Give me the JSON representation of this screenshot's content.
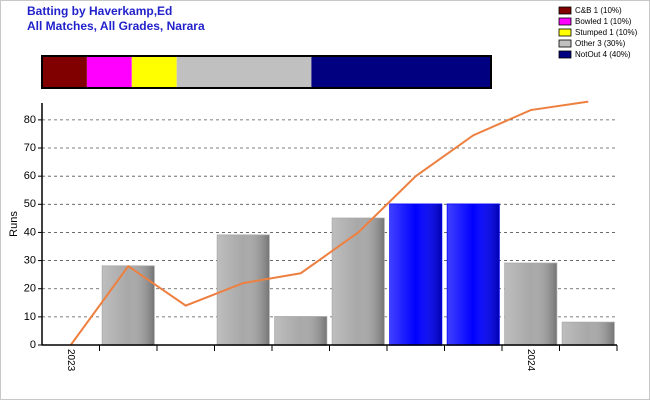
{
  "chart_data": {
    "type": "bar",
    "title": "Batting by Haverkamp,Ed",
    "subtitle": "All Matches, All Grades, Narara",
    "y_label": "Runs",
    "breakdown": [
      {
        "name": "C&B 1 (10%)",
        "color": "#800000",
        "value": 10
      },
      {
        "name": "Bowled 1 (10%)",
        "color": "#ff00ff",
        "value": 10
      },
      {
        "name": "Stumped 1 (10%)",
        "color": "#ffff00",
        "value": 10
      },
      {
        "name": "Other 3 (30%)",
        "color": "#c0c0c0",
        "value": 30
      },
      {
        "name": "NotOut 4 (40%)",
        "color": "#000080",
        "value": 40
      }
    ],
    "categories": [
      "2023",
      null,
      null,
      null,
      null,
      null,
      null,
      null,
      "2024",
      null
    ],
    "values": [
      0,
      28,
      0,
      39,
      10,
      45,
      50,
      50,
      29,
      8
    ],
    "colors": [
      "#008000",
      "#a8a8a8",
      "#008000",
      "#a8a8a8",
      "#a8a8a8",
      "#a8a8a8",
      "#0000ff",
      "#0000ff",
      "#a8a8a8",
      "#a8a8a8"
    ],
    "line": {
      "color": "#ed8040",
      "values": [
        0,
        28,
        14,
        22,
        25.5,
        40,
        60,
        74.5,
        83.5,
        86.5
      ]
    },
    "ylim": [
      0,
      86
    ],
    "yticks": [
      0,
      10,
      20,
      30,
      40,
      50,
      60,
      70,
      80
    ],
    "grid": true
  }
}
